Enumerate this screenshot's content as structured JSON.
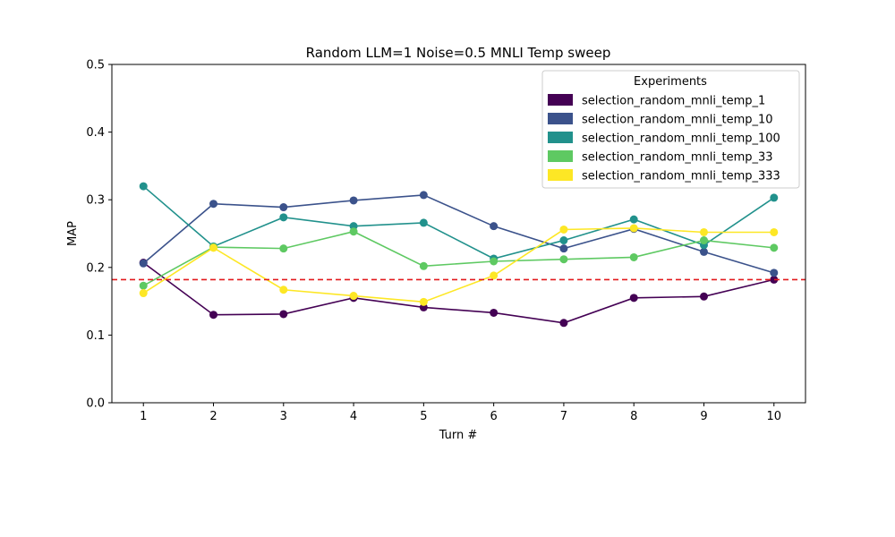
{
  "chart_data": {
    "type": "line",
    "title": "Random LLM=1 Noise=0.5 MNLI Temp sweep",
    "xlabel": "Turn #",
    "ylabel": "MAP",
    "x": [
      1,
      2,
      3,
      4,
      5,
      6,
      7,
      8,
      9,
      10
    ],
    "xlim": [
      0.55,
      10.45
    ],
    "ylim": [
      0,
      0.5
    ],
    "yticks": [
      0.0,
      0.1,
      0.2,
      0.3,
      0.4,
      0.5
    ],
    "ytick_labels": [
      "0.0",
      "0.1",
      "0.2",
      "0.3",
      "0.4",
      "0.5"
    ],
    "grid": false,
    "legend": {
      "title": "Experiments",
      "placement": "top-right"
    },
    "reference_line": {
      "y": 0.182,
      "color": "#e31a1c",
      "style": "dashed"
    },
    "series": [
      {
        "name": "selection_random_mnli_temp_1",
        "color": "#440154",
        "values": [
          0.207,
          0.13,
          0.131,
          0.155,
          0.141,
          0.133,
          0.118,
          0.155,
          0.157,
          0.182
        ]
      },
      {
        "name": "selection_random_mnli_temp_10",
        "color": "#3b528b",
        "values": [
          0.206,
          0.294,
          0.289,
          0.299,
          0.307,
          0.261,
          0.228,
          0.257,
          0.223,
          0.192
        ]
      },
      {
        "name": "selection_random_mnli_temp_100",
        "color": "#21918c",
        "values": [
          0.32,
          0.231,
          0.274,
          0.261,
          0.266,
          0.213,
          0.24,
          0.271,
          0.233,
          0.303
        ]
      },
      {
        "name": "selection_random_mnli_temp_33",
        "color": "#5ec962",
        "values": [
          0.173,
          0.23,
          0.228,
          0.253,
          0.202,
          0.209,
          0.212,
          0.215,
          0.24,
          0.229
        ]
      },
      {
        "name": "selection_random_mnli_temp_333",
        "color": "#fde725",
        "values": [
          0.162,
          0.229,
          0.167,
          0.158,
          0.149,
          0.188,
          0.256,
          0.258,
          0.252,
          0.252
        ]
      }
    ]
  }
}
